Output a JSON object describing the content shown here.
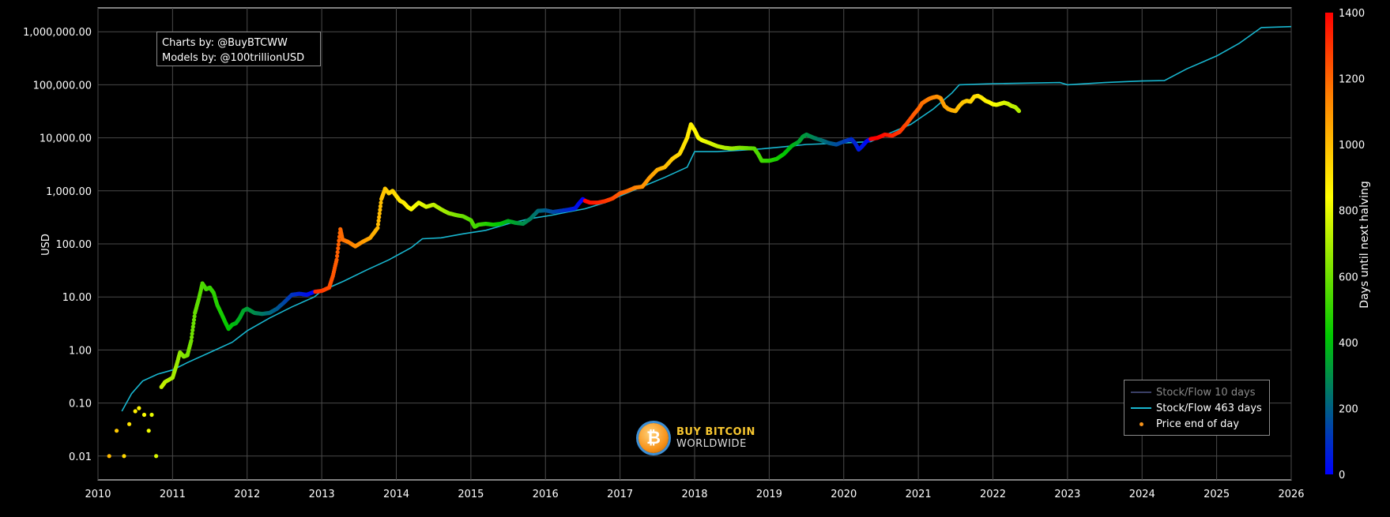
{
  "credits": {
    "line1": "Charts by: @BuyBTCWW",
    "line2": "Models by: @100trillionUSD"
  },
  "logo": {
    "line1": "BUY BITCOIN",
    "line2": "WORLDWIDE",
    "glyph": "₿",
    "icon": "bitcoin-coin-icon"
  },
  "legend": [
    {
      "label": "Stock/Flow 10 days",
      "kind": "line",
      "color": "#3a3f66",
      "faded": true
    },
    {
      "label": "Stock/Flow 463 days",
      "kind": "line",
      "color": "#18b6cf",
      "faded": false
    },
    {
      "label": "Price end of day",
      "kind": "dot",
      "color": "#f7931a",
      "faded": false
    }
  ],
  "colors": {
    "background": "#000000",
    "grid": "#4a4a4a",
    "model_line": "#18b6cf",
    "colorscale": [
      "#0000ff",
      "#00c800",
      "#ffff00",
      "#ff0000"
    ]
  },
  "chart_data": {
    "type": "scatter",
    "title": "",
    "xlabel": "",
    "ylabel": "USD",
    "y_scale": "log",
    "xlim": [
      2010.0,
      2026.0
    ],
    "ylim_exp": [
      -2.45,
      6.45
    ],
    "grid": true,
    "legend_position": "bottom-right",
    "x_ticks": [
      "2010",
      "2011",
      "2012",
      "2013",
      "2014",
      "2015",
      "2016",
      "2017",
      "2018",
      "2019",
      "2020",
      "2021",
      "2022",
      "2023",
      "2024",
      "2025",
      "2026"
    ],
    "y_ticks": [
      {
        "value": 0.01,
        "label": "0.01"
      },
      {
        "value": 0.1,
        "label": "0.10"
      },
      {
        "value": 1,
        "label": "1.00"
      },
      {
        "value": 10,
        "label": "10.00"
      },
      {
        "value": 100,
        "label": "100.00"
      },
      {
        "value": 1000,
        "label": "1,000.00"
      },
      {
        "value": 10000,
        "label": "10,000.00"
      },
      {
        "value": 100000,
        "label": "100,000.00"
      },
      {
        "value": 1000000,
        "label": "1,000,000.00"
      }
    ],
    "colorbar": {
      "title": "Days until next halving",
      "min": 0,
      "max": 1400,
      "ticks": [
        "0",
        "200",
        "400",
        "600",
        "800",
        "1000",
        "1200",
        "1400"
      ]
    },
    "halvings": [
      2012.91,
      2016.53,
      2020.36,
      2024.3
    ],
    "series": [
      {
        "name": "Stock/Flow 463 days",
        "kind": "line",
        "x": [
          2010.32,
          2010.45,
          2010.6,
          2010.8,
          2011.0,
          2011.2,
          2011.5,
          2011.8,
          2012.0,
          2012.3,
          2012.6,
          2012.9,
          2013.0,
          2013.3,
          2013.6,
          2013.9,
          2014.2,
          2014.35,
          2014.6,
          2014.9,
          2015.2,
          2015.5,
          2015.8,
          2016.1,
          2016.3,
          2016.53,
          2016.8,
          2017.0,
          2017.3,
          2017.6,
          2017.9,
          2018.0,
          2018.3,
          2018.6,
          2018.9,
          2019.2,
          2019.5,
          2019.8,
          2020.0,
          2020.36,
          2020.6,
          2020.9,
          2021.2,
          2021.45,
          2021.55,
          2022.0,
          2022.5,
          2022.9,
          2023.0,
          2023.5,
          2024.0,
          2024.3,
          2024.6,
          2025.0,
          2025.3,
          2025.6,
          2026.0
        ],
        "y": [
          0.07,
          0.15,
          0.26,
          0.35,
          0.42,
          0.58,
          0.9,
          1.4,
          2.3,
          4.0,
          6.5,
          10,
          13,
          20,
          32,
          50,
          85,
          125,
          130,
          155,
          180,
          240,
          300,
          350,
          400,
          460,
          600,
          800,
          1200,
          1800,
          2800,
          5500,
          5500,
          5800,
          6200,
          6800,
          7500,
          7800,
          8000,
          8500,
          12000,
          18000,
          35000,
          70000,
          100000,
          105000,
          108000,
          110000,
          100000,
          110000,
          118000,
          120000,
          200000,
          350000,
          600000,
          1200000,
          1250000
        ]
      },
      {
        "name": "Price end of day",
        "kind": "scatter",
        "x": [
          2010.15,
          2010.25,
          2010.35,
          2010.42,
          2010.5,
          2010.55,
          2010.62,
          2010.68,
          2010.72,
          2010.78,
          2010.85,
          2010.9,
          2011.0,
          2011.05,
          2011.1,
          2011.15,
          2011.2,
          2011.25,
          2011.3,
          2011.35,
          2011.4,
          2011.45,
          2011.5,
          2011.55,
          2011.6,
          2011.65,
          2011.7,
          2011.75,
          2011.8,
          2011.85,
          2011.9,
          2011.95,
          2012.0,
          2012.1,
          2012.2,
          2012.3,
          2012.4,
          2012.5,
          2012.6,
          2012.7,
          2012.8,
          2012.9,
          2013.0,
          2013.1,
          2013.15,
          2013.2,
          2013.25,
          2013.28,
          2013.35,
          2013.45,
          2013.55,
          2013.65,
          2013.75,
          2013.8,
          2013.85,
          2013.9,
          2013.95,
          2014.0,
          2014.05,
          2014.1,
          2014.15,
          2014.2,
          2014.3,
          2014.4,
          2014.5,
          2014.6,
          2014.7,
          2014.8,
          2014.9,
          2015.0,
          2015.05,
          2015.1,
          2015.2,
          2015.3,
          2015.4,
          2015.5,
          2015.6,
          2015.7,
          2015.8,
          2015.9,
          2016.0,
          2016.1,
          2016.2,
          2016.3,
          2016.4,
          2016.45,
          2016.5,
          2016.53,
          2016.6,
          2016.7,
          2016.8,
          2016.9,
          2017.0,
          2017.1,
          2017.2,
          2017.3,
          2017.4,
          2017.5,
          2017.6,
          2017.7,
          2017.8,
          2017.85,
          2017.9,
          2017.95,
          2018.0,
          2018.05,
          2018.1,
          2018.2,
          2018.3,
          2018.4,
          2018.5,
          2018.6,
          2018.7,
          2018.8,
          2018.85,
          2018.9,
          2019.0,
          2019.1,
          2019.2,
          2019.3,
          2019.4,
          2019.45,
          2019.5,
          2019.6,
          2019.7,
          2019.8,
          2019.9,
          2020.0,
          2020.1,
          2020.15,
          2020.2,
          2020.25,
          2020.3,
          2020.36,
          2020.45,
          2020.55,
          2020.65,
          2020.75,
          2020.85,
          2020.95,
          2021.0,
          2021.05,
          2021.1,
          2021.15,
          2021.2,
          2021.25,
          2021.3,
          2021.35,
          2021.4,
          2021.45,
          2021.5,
          2021.55,
          2021.6,
          2021.65,
          2021.7,
          2021.75,
          2021.8,
          2021.85,
          2021.9,
          2021.95,
          2022.0,
          2022.05,
          2022.1,
          2022.15,
          2022.2,
          2022.25,
          2022.3,
          2022.35
        ],
        "y": [
          0.01,
          0.03,
          0.01,
          0.04,
          0.07,
          0.08,
          0.06,
          0.03,
          0.06,
          0.01,
          0.2,
          0.25,
          0.3,
          0.5,
          0.9,
          0.75,
          0.8,
          1.5,
          5,
          9,
          18,
          14,
          15,
          12,
          7,
          5,
          3.5,
          2.5,
          3,
          3.2,
          4,
          5.5,
          6,
          5,
          4.8,
          5,
          6,
          8,
          11,
          11.5,
          11,
          12.5,
          13,
          15,
          25,
          50,
          190,
          120,
          110,
          90,
          110,
          130,
          200,
          700,
          1100,
          900,
          1000,
          800,
          650,
          600,
          500,
          450,
          600,
          500,
          550,
          450,
          380,
          350,
          330,
          280,
          210,
          230,
          240,
          230,
          240,
          270,
          250,
          240,
          300,
          420,
          430,
          400,
          420,
          440,
          470,
          580,
          700,
          650,
          600,
          600,
          640,
          720,
          900,
          1000,
          1150,
          1200,
          1800,
          2500,
          2800,
          4000,
          5000,
          7000,
          10000,
          18000,
          14000,
          10000,
          9000,
          8000,
          7000,
          6500,
          6300,
          6500,
          6400,
          6300,
          5000,
          3700,
          3700,
          4000,
          5000,
          7000,
          8500,
          10500,
          11500,
          10000,
          9000,
          8000,
          7500,
          8500,
          9500,
          8000,
          6000,
          7000,
          8500,
          9500,
          10000,
          11500,
          11000,
          13000,
          19000,
          29000,
          35000,
          45000,
          50000,
          55000,
          58000,
          60000,
          56000,
          40000,
          35000,
          33000,
          32000,
          40000,
          47000,
          50000,
          48000,
          60000,
          62000,
          57000,
          50000,
          47000,
          43000,
          42000,
          44000,
          46000,
          44000,
          40000,
          38000,
          32000
        ]
      }
    ]
  }
}
